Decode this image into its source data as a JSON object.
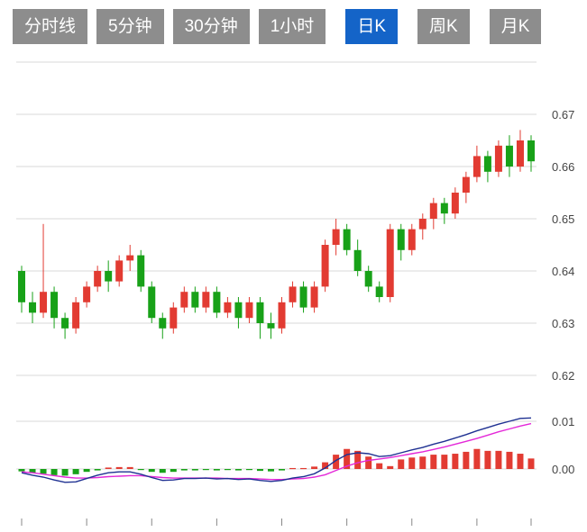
{
  "tabs": [
    {
      "label": "分时线",
      "active": false
    },
    {
      "label": "5分钟",
      "active": false
    },
    {
      "label": "30分钟",
      "active": false
    },
    {
      "label": "1小时",
      "active": false
    },
    {
      "label": "日K",
      "active": true
    },
    {
      "label": "周K",
      "active": false
    },
    {
      "label": "月K",
      "active": false
    }
  ],
  "colors": {
    "up": "#e23b32",
    "down": "#18a118",
    "grid": "#d9d9d9",
    "axis_text": "#444444",
    "tab_bg": "#8d8d8d",
    "tab_active_bg": "#1464c8",
    "tab_text": "#ffffff",
    "dif_line": "#1f3192",
    "dea_line": "#e428d8",
    "tick": "#888888"
  },
  "chart_data": {
    "type": "candlestick+macd",
    "title": "",
    "legend": [],
    "price_panel": {
      "axis_side": "right",
      "axis_ticks": [
        {
          "value": 0.68,
          "label": ""
        },
        {
          "value": 0.67,
          "label": "0.67"
        },
        {
          "value": 0.66,
          "label": "0.66"
        },
        {
          "value": 0.65,
          "label": "0.65"
        },
        {
          "value": 0.64,
          "label": "0.64"
        },
        {
          "value": 0.63,
          "label": "0.63"
        },
        {
          "value": 0.62,
          "label": "0.62"
        }
      ],
      "ylim": [
        0.618,
        0.68
      ],
      "candles_ohlc": [
        [
          0.64,
          0.641,
          0.632,
          0.634
        ],
        [
          0.634,
          0.636,
          0.63,
          0.632
        ],
        [
          0.632,
          0.649,
          0.631,
          0.636
        ],
        [
          0.636,
          0.637,
          0.629,
          0.631
        ],
        [
          0.631,
          0.632,
          0.627,
          0.629
        ],
        [
          0.629,
          0.635,
          0.628,
          0.634
        ],
        [
          0.634,
          0.638,
          0.633,
          0.637
        ],
        [
          0.637,
          0.641,
          0.636,
          0.64
        ],
        [
          0.64,
          0.642,
          0.636,
          0.638
        ],
        [
          0.638,
          0.643,
          0.637,
          0.642
        ],
        [
          0.642,
          0.645,
          0.64,
          0.643
        ],
        [
          0.643,
          0.644,
          0.636,
          0.637
        ],
        [
          0.637,
          0.638,
          0.63,
          0.631
        ],
        [
          0.631,
          0.632,
          0.627,
          0.629
        ],
        [
          0.629,
          0.634,
          0.628,
          0.633
        ],
        [
          0.633,
          0.637,
          0.632,
          0.636
        ],
        [
          0.636,
          0.637,
          0.632,
          0.633
        ],
        [
          0.633,
          0.637,
          0.632,
          0.636
        ],
        [
          0.636,
          0.637,
          0.631,
          0.632
        ],
        [
          0.632,
          0.635,
          0.631,
          0.634
        ],
        [
          0.634,
          0.635,
          0.629,
          0.631
        ],
        [
          0.631,
          0.635,
          0.63,
          0.634
        ],
        [
          0.634,
          0.635,
          0.627,
          0.63
        ],
        [
          0.63,
          0.632,
          0.627,
          0.629
        ],
        [
          0.629,
          0.635,
          0.628,
          0.634
        ],
        [
          0.634,
          0.638,
          0.633,
          0.637
        ],
        [
          0.637,
          0.638,
          0.632,
          0.633
        ],
        [
          0.633,
          0.638,
          0.632,
          0.637
        ],
        [
          0.637,
          0.646,
          0.636,
          0.645
        ],
        [
          0.645,
          0.65,
          0.643,
          0.648
        ],
        [
          0.648,
          0.649,
          0.643,
          0.644
        ],
        [
          0.644,
          0.646,
          0.639,
          0.64
        ],
        [
          0.64,
          0.641,
          0.636,
          0.637
        ],
        [
          0.637,
          0.638,
          0.634,
          0.635
        ],
        [
          0.635,
          0.649,
          0.634,
          0.648
        ],
        [
          0.648,
          0.649,
          0.642,
          0.644
        ],
        [
          0.644,
          0.649,
          0.643,
          0.648
        ],
        [
          0.648,
          0.651,
          0.646,
          0.65
        ],
        [
          0.65,
          0.654,
          0.648,
          0.653
        ],
        [
          0.653,
          0.654,
          0.649,
          0.651
        ],
        [
          0.651,
          0.656,
          0.65,
          0.655
        ],
        [
          0.655,
          0.659,
          0.653,
          0.658
        ],
        [
          0.658,
          0.664,
          0.657,
          0.662
        ],
        [
          0.662,
          0.663,
          0.657,
          0.659
        ],
        [
          0.659,
          0.665,
          0.658,
          0.664
        ],
        [
          0.664,
          0.666,
          0.658,
          0.66
        ],
        [
          0.66,
          0.667,
          0.659,
          0.665
        ],
        [
          0.665,
          0.666,
          0.659,
          0.661
        ]
      ]
    },
    "macd_panel": {
      "axis_side": "right",
      "axis_ticks": [
        {
          "value": 0.01,
          "label": "0.01"
        },
        {
          "value": 0.0,
          "label": "0.00"
        }
      ],
      "ylim": [
        -0.012,
        0.013
      ],
      "histogram": [
        -0.0005,
        -0.0008,
        -0.001,
        -0.0013,
        -0.0014,
        -0.0011,
        -0.0006,
        -0.0003,
        0.0003,
        0.0004,
        0.0004,
        -0.0002,
        -0.0006,
        -0.0008,
        -0.0006,
        -0.0003,
        -0.0003,
        -0.0002,
        -0.0003,
        -0.0002,
        -0.0003,
        -0.0002,
        -0.0004,
        -0.0005,
        -0.0003,
        0.0002,
        0.0002,
        0.0005,
        0.0014,
        0.003,
        0.0042,
        0.0038,
        0.0026,
        0.0012,
        0.0006,
        0.002,
        0.0024,
        0.0026,
        0.003,
        0.003,
        0.0032,
        0.0036,
        0.0042,
        0.0038,
        0.0038,
        0.0036,
        0.0032,
        0.0022
      ],
      "dif": [
        -0.0008,
        -0.0013,
        -0.0017,
        -0.0023,
        -0.0028,
        -0.0027,
        -0.002,
        -0.0013,
        -0.0008,
        -0.0006,
        -0.0006,
        -0.0011,
        -0.0018,
        -0.0024,
        -0.0023,
        -0.002,
        -0.002,
        -0.0019,
        -0.0021,
        -0.002,
        -0.0022,
        -0.0021,
        -0.0024,
        -0.0026,
        -0.0024,
        -0.0019,
        -0.0016,
        -0.001,
        0.0002,
        0.0018,
        0.003,
        0.0034,
        0.0032,
        0.0026,
        0.0028,
        0.0034,
        0.004,
        0.0045,
        0.0052,
        0.0058,
        0.0065,
        0.0072,
        0.008,
        0.0087,
        0.0094,
        0.01,
        0.0106,
        0.0107
      ],
      "dea": [
        -0.0006,
        -0.0008,
        -0.0011,
        -0.0014,
        -0.0017,
        -0.0019,
        -0.0019,
        -0.0018,
        -0.0016,
        -0.0015,
        -0.0014,
        -0.0014,
        -0.0016,
        -0.0018,
        -0.0019,
        -0.0019,
        -0.0019,
        -0.0019,
        -0.0019,
        -0.002,
        -0.002,
        -0.002,
        -0.0021,
        -0.0022,
        -0.0022,
        -0.0021,
        -0.002,
        -0.0017,
        -0.0012,
        -0.0003,
        0.0006,
        0.0013,
        0.0018,
        0.0021,
        0.0024,
        0.0028,
        0.0032,
        0.0036,
        0.0041,
        0.0046,
        0.0052,
        0.0058,
        0.0064,
        0.0071,
        0.0078,
        0.0084,
        0.009,
        0.0095
      ]
    }
  }
}
